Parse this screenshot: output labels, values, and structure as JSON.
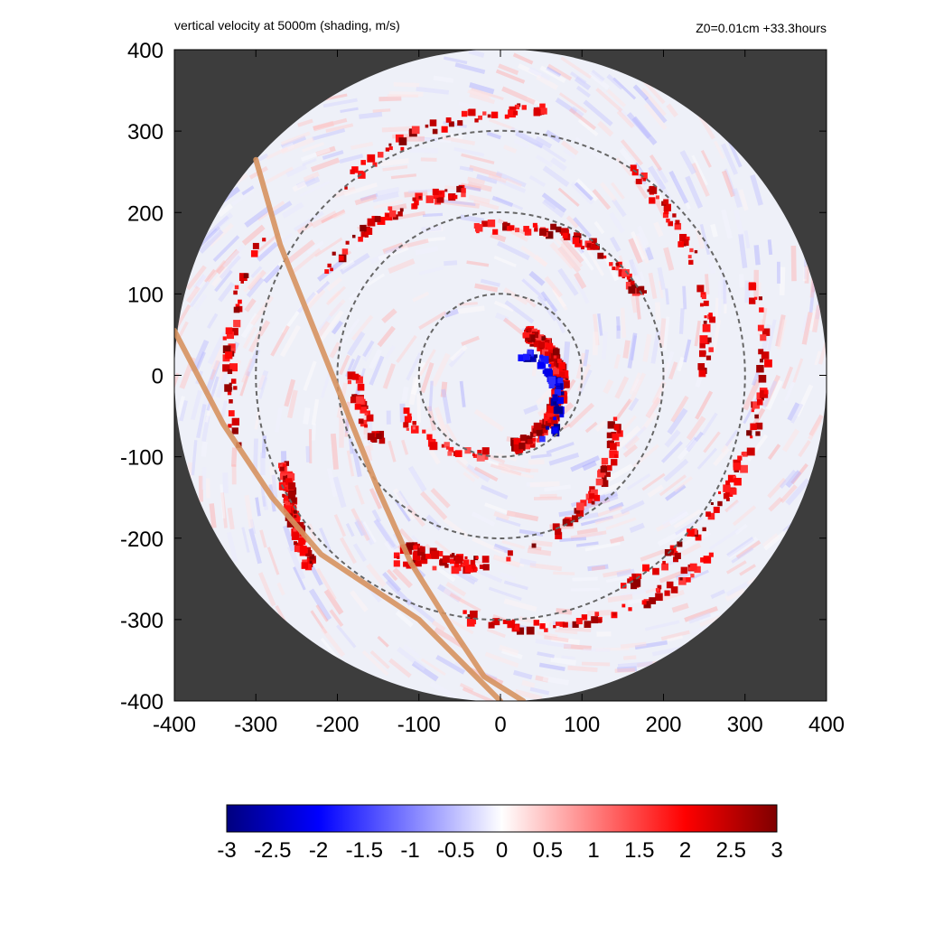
{
  "chart_data": {
    "type": "heatmap",
    "title": "vertical velocity at 5000m (shading, m/s)",
    "subtitle": "Z0=0.01cm  +33.3hours",
    "xlim": [
      -400,
      400
    ],
    "ylim": [
      -400,
      400
    ],
    "x_ticks": [
      "-400",
      "-300",
      "-200",
      "-100",
      "0",
      "100",
      "200",
      "300",
      "400"
    ],
    "y_ticks": [
      "400",
      "300",
      "200",
      "100",
      "0",
      "-100",
      "-200",
      "-300",
      "-400"
    ],
    "domain_radius": 400,
    "dashed_circle_radii": [
      100,
      200,
      300
    ],
    "tracks": [
      {
        "color": "#d6925f",
        "points": [
          [
            -300,
            265
          ],
          [
            -270,
            160
          ],
          [
            -230,
            60
          ],
          [
            -190,
            -40
          ],
          [
            -150,
            -140
          ],
          [
            -110,
            -230
          ],
          [
            -60,
            -310
          ],
          [
            -20,
            -370
          ],
          [
            28,
            -400
          ]
        ]
      },
      {
        "color": "#d6925f",
        "points": [
          [
            -400,
            55
          ],
          [
            -340,
            -60
          ],
          [
            -280,
            -150
          ],
          [
            -220,
            -220
          ],
          [
            -160,
            -260
          ],
          [
            -100,
            -300
          ],
          [
            -50,
            -350
          ],
          [
            0,
            -400
          ]
        ]
      }
    ],
    "colorbar": {
      "min": -3,
      "max": 3,
      "tick_labels": [
        "-3",
        "-2.5",
        "-2",
        "-1.5",
        "-1",
        "-0.5",
        "0",
        "0.5",
        "1",
        "1.5",
        "2",
        "2.5",
        "3"
      ],
      "colors": [
        "#00007f",
        "#0000ff",
        "#ffffff",
        "#ff0000",
        "#7f0000"
      ]
    },
    "colors": {
      "background": "#3d3d3d",
      "dashed_circle": "#666666",
      "track": "#d6925f"
    }
  }
}
